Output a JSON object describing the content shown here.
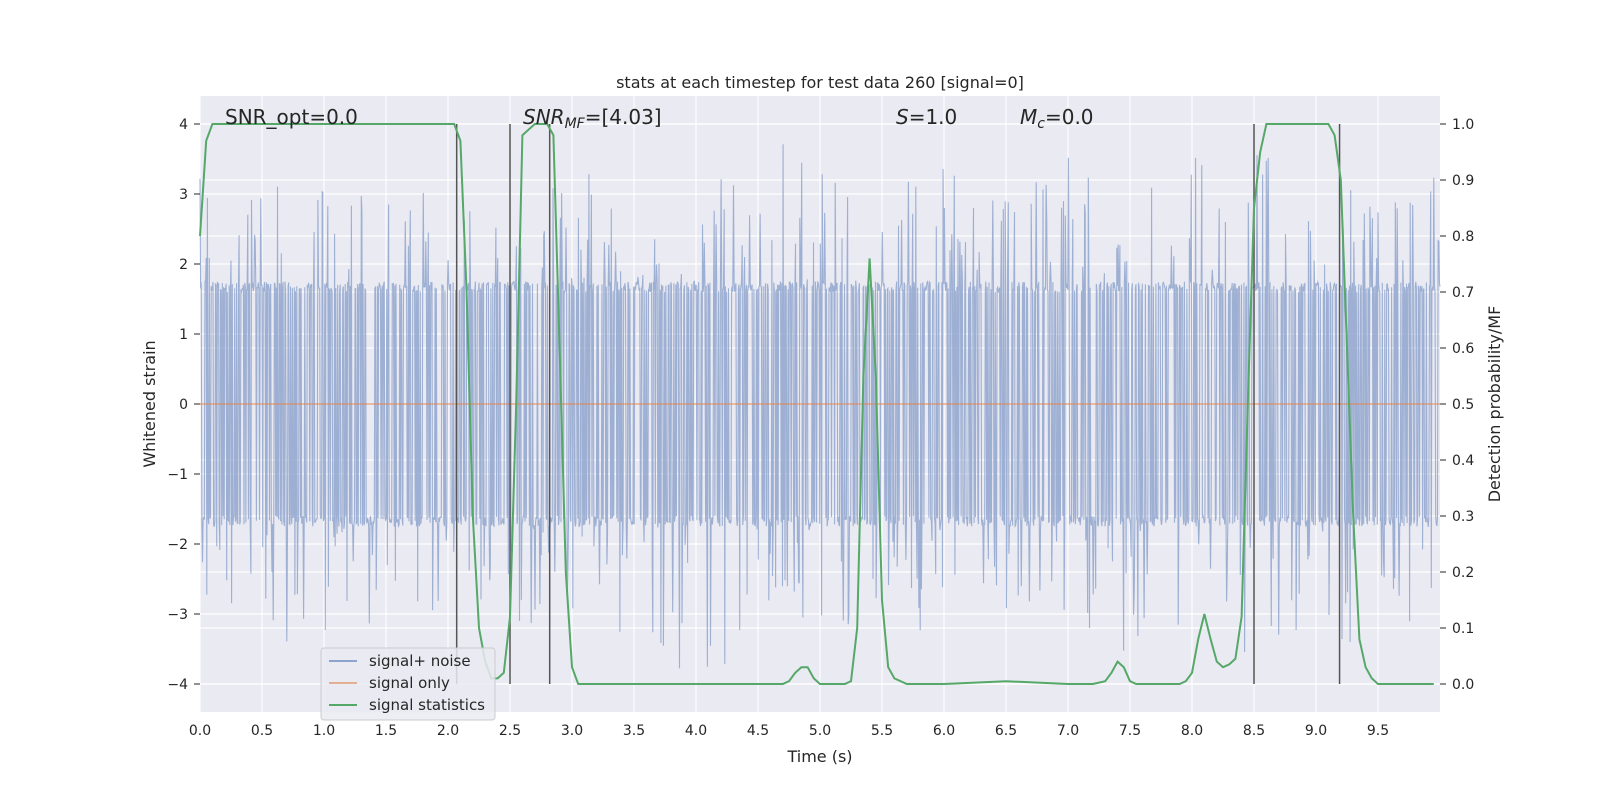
{
  "chart_data": {
    "type": "line",
    "title": "stats at each timestep for test data 260 [signal=0]",
    "xlabel": "Time (s)",
    "ylabel_left": "Whitened strain",
    "ylabel_right": "Detection probability/MF",
    "xlim": [
      0.0,
      10.0
    ],
    "ylim_left": [
      -4.4,
      4.4
    ],
    "ylim_right": [
      -0.05,
      1.05
    ],
    "x_ticks": [
      "0.0",
      "0.5",
      "1.0",
      "1.5",
      "2.0",
      "2.5",
      "3.0",
      "3.5",
      "4.0",
      "4.5",
      "5.0",
      "5.5",
      "6.0",
      "6.5",
      "7.0",
      "7.5",
      "8.0",
      "8.5",
      "9.0",
      "9.5"
    ],
    "y_left_ticks": [
      -4,
      -3,
      -2,
      -1,
      0,
      1,
      2,
      3,
      4
    ],
    "y_left_tick_labels": [
      "−4",
      "−3",
      "−2",
      "−1",
      "0",
      "1",
      "2",
      "3",
      "4"
    ],
    "y_right_ticks": [
      "0.0",
      "0.1",
      "0.2",
      "0.3",
      "0.4",
      "0.5",
      "0.6",
      "0.7",
      "0.8",
      "0.9",
      "1.0"
    ],
    "grid": true,
    "legend_placement": "lower-left",
    "annotations": {
      "snr_opt": "SNR_opt=0.0",
      "snr_mf_base": "SNR",
      "snr_mf_sub": "MF",
      "snr_mf_value": "=[4.03]",
      "s_base": "S",
      "s_value": "=1.0",
      "mc_base": "M",
      "mc_sub": "c",
      "mc_value": "=0.0"
    },
    "vertical_lines": [
      2.07,
      2.5,
      2.82,
      8.5,
      9.19
    ],
    "series": [
      {
        "name": "signal+ noise",
        "color": "#8fa4cd",
        "envelope": {
          "t": [
            0.0,
            0.5,
            1.0,
            1.5,
            2.0,
            2.5,
            3.0,
            3.5,
            4.0,
            4.5,
            5.0,
            5.5,
            6.0,
            6.5,
            7.0,
            7.5,
            8.0,
            8.5,
            9.0,
            9.5,
            10.0
          ],
          "upper": [
            3.3,
            3.2,
            3.3,
            3.1,
            3.2,
            3.0,
            3.4,
            3.0,
            2.8,
            4.0,
            3.5,
            3.3,
            3.4,
            3.0,
            3.6,
            3.2,
            3.6,
            3.6,
            3.3,
            3.0,
            3.3
          ],
          "lower": [
            -3.0,
            -3.4,
            -3.5,
            -3.0,
            -3.2,
            -3.3,
            -3.0,
            -3.5,
            -4.0,
            -3.4,
            -3.7,
            -3.2,
            -3.3,
            -3.1,
            -3.0,
            -3.6,
            -3.4,
            -3.6,
            -3.6,
            -3.3,
            -3.2
          ]
        }
      },
      {
        "name": "signal only",
        "color": "#dd8452",
        "y": 0.0
      },
      {
        "name": "signal statistics",
        "color": "#55a868",
        "axis": "right",
        "x": [
          0.0,
          0.05,
          0.1,
          0.2,
          0.5,
          1.0,
          1.5,
          1.9,
          2.0,
          2.05,
          2.1,
          2.15,
          2.2,
          2.25,
          2.3,
          2.35,
          2.4,
          2.45,
          2.5,
          2.55,
          2.6,
          2.7,
          2.8,
          2.85,
          2.9,
          2.95,
          3.0,
          3.05,
          3.5,
          4.0,
          4.5,
          4.65,
          4.7,
          4.75,
          4.8,
          4.85,
          4.9,
          4.95,
          5.0,
          5.1,
          5.2,
          5.25,
          5.3,
          5.35,
          5.4,
          5.45,
          5.5,
          5.55,
          5.6,
          5.7,
          6.0,
          6.5,
          7.0,
          7.2,
          7.3,
          7.35,
          7.4,
          7.45,
          7.5,
          7.55,
          7.6,
          7.7,
          7.9,
          7.95,
          8.0,
          8.05,
          8.1,
          8.15,
          8.2,
          8.25,
          8.3,
          8.35,
          8.4,
          8.45,
          8.5,
          8.55,
          8.6,
          8.65,
          8.7,
          8.8,
          9.0,
          9.1,
          9.15,
          9.2,
          9.25,
          9.3,
          9.35,
          9.4,
          9.45,
          9.5,
          9.7,
          9.95
        ],
        "y": [
          0.8,
          0.97,
          1.0,
          1.0,
          1.0,
          1.0,
          1.0,
          1.0,
          1.0,
          1.0,
          0.97,
          0.7,
          0.3,
          0.1,
          0.04,
          0.01,
          0.01,
          0.02,
          0.12,
          0.5,
          0.98,
          1.0,
          1.0,
          0.98,
          0.6,
          0.2,
          0.03,
          0.0,
          0.0,
          0.0,
          0.0,
          0.0,
          0.0,
          0.005,
          0.02,
          0.03,
          0.03,
          0.01,
          0.0,
          0.0,
          0.0,
          0.005,
          0.1,
          0.55,
          0.76,
          0.55,
          0.15,
          0.03,
          0.01,
          0.0,
          0.0,
          0.005,
          0.0,
          0.0,
          0.005,
          0.02,
          0.04,
          0.03,
          0.005,
          0.0,
          0.0,
          0.0,
          0.0,
          0.005,
          0.02,
          0.08,
          0.125,
          0.08,
          0.04,
          0.03,
          0.035,
          0.045,
          0.12,
          0.5,
          0.85,
          0.95,
          1.0,
          1.0,
          1.0,
          1.0,
          1.0,
          1.0,
          0.98,
          0.9,
          0.6,
          0.3,
          0.08,
          0.03,
          0.01,
          0.0,
          0.0,
          0.0
        ]
      }
    ]
  }
}
